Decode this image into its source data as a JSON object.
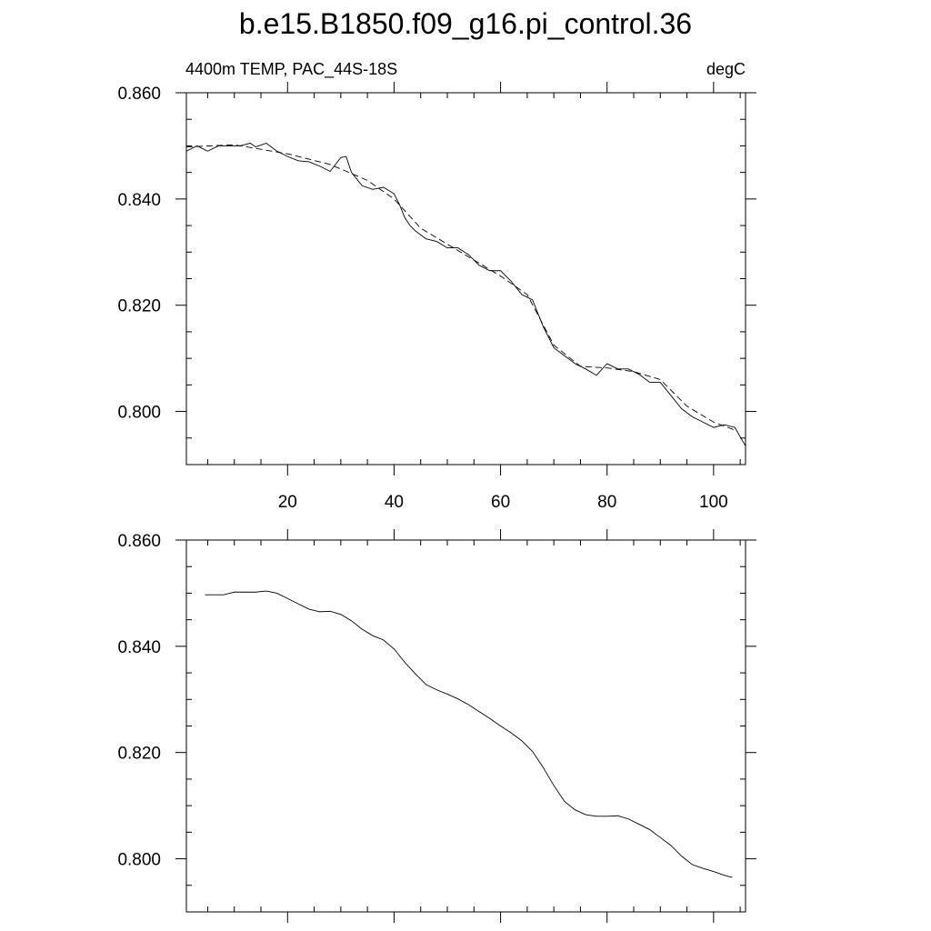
{
  "chart_data": [
    {
      "type": "line",
      "title": "b.e15.B1850.f09_g16.pi_control.36",
      "subtitle_left": "4400m TEMP, PAC_44S-18S",
      "subtitle_right": "degC",
      "xlabel": "",
      "ylabel": "",
      "xlim": [
        1,
        106
      ],
      "ylim": [
        0.79,
        0.86
      ],
      "xticks_major": [
        20,
        40,
        60,
        80,
        100
      ],
      "xticks_minor": [
        5,
        10,
        15,
        25,
        30,
        35,
        45,
        50,
        55,
        65,
        70,
        75,
        85,
        90,
        95,
        105
      ],
      "xtick_labels": [
        "20",
        "40",
        "60",
        "80",
        "100"
      ],
      "yticks_major": [
        0.8,
        0.82,
        0.84,
        0.86
      ],
      "yticks_minor": [
        0.795,
        0.805,
        0.81,
        0.815,
        0.825,
        0.83,
        0.835,
        0.845,
        0.85,
        0.855
      ],
      "ytick_labels": [
        "0.800",
        "0.820",
        "0.840",
        "0.860"
      ],
      "grid": false,
      "series": [
        {
          "style": "solid",
          "x": [
            1,
            3,
            5,
            7,
            9,
            11,
            13,
            14,
            16,
            18,
            20,
            22,
            24,
            26,
            28,
            30,
            31,
            32,
            34,
            36,
            38,
            40,
            41,
            42,
            43,
            44,
            46,
            48,
            50,
            52,
            54,
            56,
            58,
            60,
            62,
            64,
            66,
            68,
            70,
            72,
            74,
            76,
            78,
            80,
            82,
            84,
            86,
            88,
            90,
            92,
            94,
            96,
            98,
            100,
            102,
            104,
            106
          ],
          "y": [
            0.849,
            0.85,
            0.849,
            0.85,
            0.85,
            0.85,
            0.8505,
            0.8498,
            0.8505,
            0.849,
            0.848,
            0.8472,
            0.847,
            0.8462,
            0.8452,
            0.8478,
            0.848,
            0.845,
            0.8425,
            0.8418,
            0.8422,
            0.841,
            0.839,
            0.8365,
            0.835,
            0.834,
            0.8325,
            0.832,
            0.8308,
            0.8308,
            0.8295,
            0.8275,
            0.8265,
            0.8265,
            0.8245,
            0.822,
            0.821,
            0.816,
            0.812,
            0.8105,
            0.809,
            0.808,
            0.8068,
            0.809,
            0.808,
            0.808,
            0.807,
            0.8055,
            0.8055,
            0.803,
            0.8005,
            0.799,
            0.798,
            0.797,
            0.7975,
            0.797,
            0.7935
          ]
        },
        {
          "style": "dashed",
          "x": [
            1,
            10,
            20,
            28,
            35,
            40,
            45,
            50,
            60,
            65,
            70,
            75,
            80,
            85,
            90,
            95,
            100,
            104
          ],
          "y": [
            0.8498,
            0.8502,
            0.8485,
            0.8465,
            0.8435,
            0.84,
            0.8345,
            0.8315,
            0.8255,
            0.822,
            0.8125,
            0.8085,
            0.8082,
            0.8075,
            0.806,
            0.801,
            0.798,
            0.7965
          ]
        }
      ]
    },
    {
      "type": "line",
      "title": "",
      "xlabel": "",
      "ylabel": "",
      "xlim": [
        1,
        106
      ],
      "ylim": [
        0.79,
        0.86
      ],
      "xticks_major": [
        20,
        40,
        60,
        80,
        100
      ],
      "xticks_minor": [
        5,
        10,
        15,
        25,
        30,
        35,
        45,
        50,
        55,
        65,
        70,
        75,
        85,
        90,
        95,
        105
      ],
      "yticks_major": [
        0.8,
        0.82,
        0.84,
        0.86
      ],
      "yticks_minor": [
        0.795,
        0.805,
        0.81,
        0.815,
        0.825,
        0.83,
        0.835,
        0.845,
        0.85,
        0.855
      ],
      "ytick_labels": [
        "0.800",
        "0.820",
        "0.840",
        "0.860"
      ],
      "grid": false,
      "series": [
        {
          "style": "solid",
          "x": [
            4.5,
            8,
            10,
            12,
            14,
            16,
            18,
            20,
            22,
            24,
            26,
            28,
            30,
            32,
            34,
            36,
            38,
            40,
            42,
            44,
            46,
            48,
            50,
            52,
            54,
            56,
            58,
            60,
            62,
            64,
            66,
            68,
            70,
            72,
            74,
            76,
            78,
            80,
            82,
            84,
            86,
            88,
            90,
            92,
            94,
            96,
            98,
            100,
            102,
            103.5
          ],
          "y": [
            0.8497,
            0.8497,
            0.8502,
            0.8502,
            0.8502,
            0.8504,
            0.85,
            0.849,
            0.848,
            0.847,
            0.8465,
            0.8466,
            0.846,
            0.8448,
            0.8432,
            0.842,
            0.8412,
            0.8395,
            0.837,
            0.8348,
            0.8328,
            0.8318,
            0.831,
            0.8301,
            0.829,
            0.8277,
            0.8264,
            0.825,
            0.8237,
            0.8222,
            0.8202,
            0.8172,
            0.8138,
            0.8108,
            0.8092,
            0.8083,
            0.808,
            0.808,
            0.8081,
            0.8075,
            0.8065,
            0.8055,
            0.804,
            0.8025,
            0.8005,
            0.7989,
            0.7982,
            0.7976,
            0.7969,
            0.7965
          ]
        }
      ]
    }
  ]
}
